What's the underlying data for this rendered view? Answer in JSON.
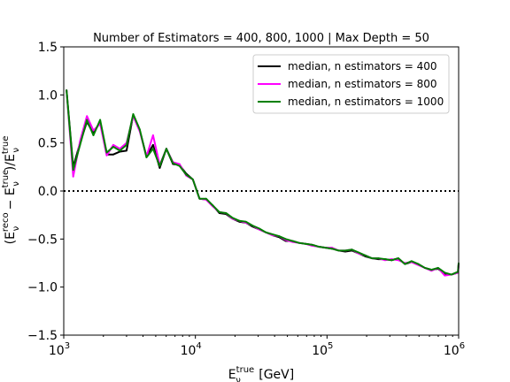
{
  "chart_data": {
    "type": "line",
    "title": "Number of Estimators = 400, 800, 1000 | Max Depth = 50",
    "xscale": "log",
    "xlim": [
      1000,
      1000000
    ],
    "ylim": [
      -1.5,
      1.5
    ],
    "x_ticks": [
      {
        "value": 1000,
        "base": "10",
        "exp": "3"
      },
      {
        "value": 10000,
        "base": "10",
        "exp": "4"
      },
      {
        "value": 100000,
        "base": "10",
        "exp": "5"
      },
      {
        "value": 1000000,
        "base": "10",
        "exp": "6"
      }
    ],
    "y_ticks": [
      {
        "value": 1.5,
        "label": "1.5"
      },
      {
        "value": 1.0,
        "label": "1.0"
      },
      {
        "value": 0.5,
        "label": "0.5"
      },
      {
        "value": 0.0,
        "label": "0.0"
      },
      {
        "value": -0.5,
        "label": "−0.5"
      },
      {
        "value": -1.0,
        "label": "−1.0"
      },
      {
        "value": -1.5,
        "label": "−1.5"
      }
    ],
    "xlabel": {
      "main": "E",
      "sup": "true",
      "sub": "ν",
      "unit": " [GeV]"
    },
    "ylabel": {
      "open": "(E",
      "sup1": "reco",
      "sub1": "ν",
      "mid": " − E",
      "sup2": "true",
      "sub2": "ν",
      "close": ")/E",
      "sup3": "true",
      "sub3": "ν"
    },
    "reference_line": {
      "y": 0,
      "style": "dotted",
      "color": "#000000"
    },
    "grid": false,
    "legend_position": "upper-right",
    "x": [
      1050,
      1180,
      1330,
      1500,
      1680,
      1890,
      2120,
      2380,
      2670,
      3000,
      3370,
      3780,
      4250,
      4770,
      5360,
      6020,
      6760,
      7590,
      8520,
      9570,
      10750,
      12070,
      13550,
      15220,
      17090,
      19190,
      21550,
      24200,
      27170,
      30510,
      34260,
      38470,
      43200,
      48510,
      54470,
      61170,
      68680,
      77130,
      86600,
      97250,
      109200,
      122600,
      137700,
      154600,
      173600,
      195000,
      218900,
      245800,
      276000,
      310000,
      348100,
      390900,
      438900,
      492900,
      553500,
      621500,
      697900,
      783700,
      880000,
      988200,
      1000000
    ],
    "series": [
      {
        "name": "median, n estimators = 400",
        "color": "#000000",
        "values": [
          1.05,
          0.25,
          0.5,
          0.72,
          0.6,
          0.72,
          0.38,
          0.38,
          0.41,
          0.42,
          0.79,
          0.63,
          0.36,
          0.48,
          0.24,
          0.44,
          0.28,
          0.27,
          0.18,
          0.12,
          -0.08,
          -0.09,
          -0.15,
          -0.23,
          -0.24,
          -0.29,
          -0.32,
          -0.33,
          -0.37,
          -0.4,
          -0.43,
          -0.46,
          -0.48,
          -0.52,
          -0.52,
          -0.54,
          -0.55,
          -0.56,
          -0.58,
          -0.59,
          -0.6,
          -0.62,
          -0.63,
          -0.62,
          -0.65,
          -0.68,
          -0.7,
          -0.71,
          -0.71,
          -0.72,
          -0.7,
          -0.76,
          -0.74,
          -0.76,
          -0.8,
          -0.82,
          -0.81,
          -0.86,
          -0.87,
          -0.85,
          -0.76
        ]
      },
      {
        "name": "median, n estimators = 800",
        "color": "#ff00ff",
        "values": [
          1.05,
          0.15,
          0.52,
          0.78,
          0.63,
          0.7,
          0.37,
          0.48,
          0.44,
          0.5,
          0.78,
          0.62,
          0.36,
          0.58,
          0.27,
          0.44,
          0.3,
          0.28,
          0.16,
          0.12,
          -0.08,
          -0.09,
          -0.16,
          -0.22,
          -0.23,
          -0.29,
          -0.31,
          -0.33,
          -0.36,
          -0.4,
          -0.43,
          -0.46,
          -0.47,
          -0.51,
          -0.53,
          -0.54,
          -0.55,
          -0.57,
          -0.58,
          -0.59,
          -0.59,
          -0.62,
          -0.62,
          -0.61,
          -0.65,
          -0.67,
          -0.7,
          -0.7,
          -0.72,
          -0.71,
          -0.72,
          -0.75,
          -0.74,
          -0.77,
          -0.8,
          -0.83,
          -0.8,
          -0.88,
          -0.87,
          -0.85,
          -0.77
        ]
      },
      {
        "name": "median, n estimators = 1000",
        "color": "#008000",
        "values": [
          1.05,
          0.22,
          0.48,
          0.74,
          0.58,
          0.74,
          0.4,
          0.46,
          0.42,
          0.48,
          0.8,
          0.64,
          0.35,
          0.44,
          0.26,
          0.44,
          0.29,
          0.26,
          0.17,
          0.12,
          -0.08,
          -0.08,
          -0.15,
          -0.22,
          -0.23,
          -0.28,
          -0.31,
          -0.32,
          -0.36,
          -0.39,
          -0.43,
          -0.45,
          -0.47,
          -0.5,
          -0.52,
          -0.54,
          -0.55,
          -0.56,
          -0.58,
          -0.59,
          -0.6,
          -0.62,
          -0.62,
          -0.61,
          -0.64,
          -0.67,
          -0.7,
          -0.7,
          -0.71,
          -0.72,
          -0.7,
          -0.76,
          -0.73,
          -0.76,
          -0.8,
          -0.82,
          -0.8,
          -0.85,
          -0.87,
          -0.84,
          -0.75
        ]
      }
    ]
  }
}
